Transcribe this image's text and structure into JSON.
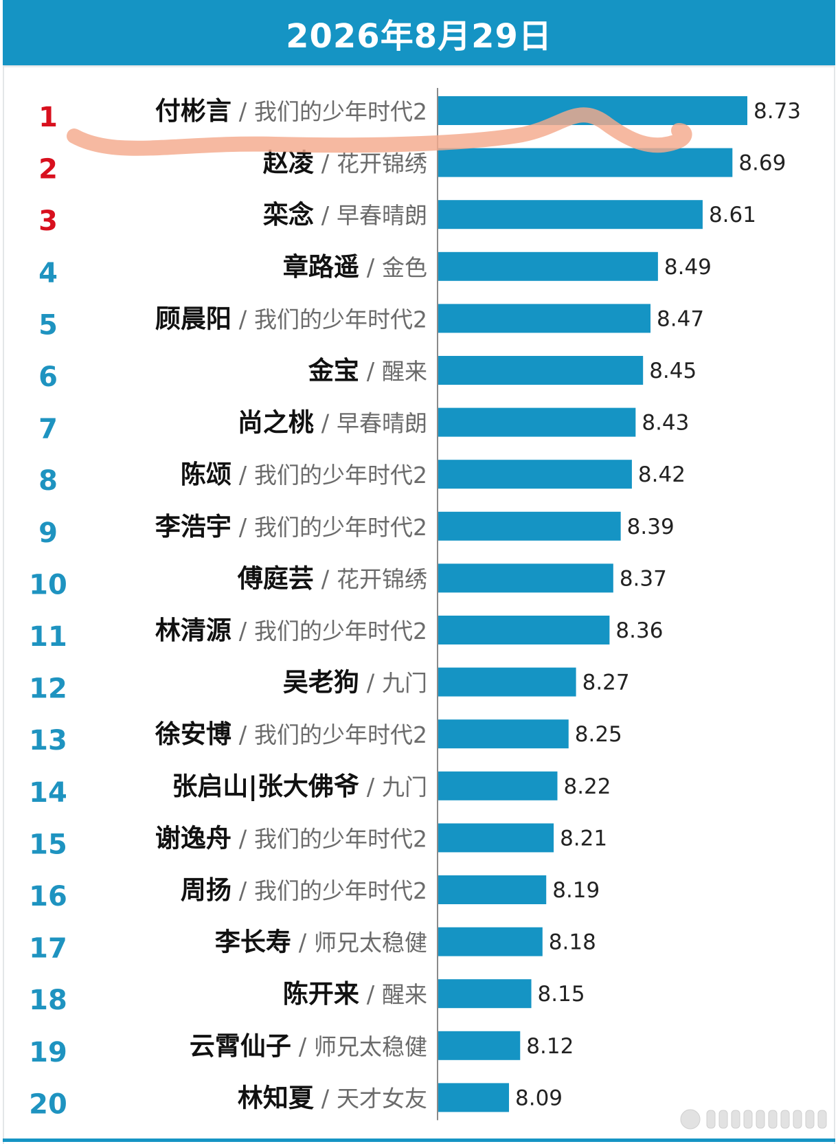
{
  "header": {
    "title": "2026年8月29日"
  },
  "colors": {
    "header_bg": "#1594c4",
    "bar": "#1594c4",
    "rank_top": "#d8101e",
    "rank_rest": "#1e93c0",
    "highlight_stroke": "#f4a98c"
  },
  "chart_data": {
    "type": "bar",
    "orientation": "horizontal",
    "title": "2026年8月29日",
    "sort": "descending",
    "grid": false,
    "xlim": [
      7.9,
      8.73
    ],
    "entries": [
      {
        "rank": "1",
        "name": "付彬言",
        "show": "我们的少年时代2",
        "value": 8.73
      },
      {
        "rank": "2",
        "name": "赵凌",
        "show": "花开锦绣",
        "value": 8.69
      },
      {
        "rank": "3",
        "name": "栾念",
        "show": "早春晴朗",
        "value": 8.61
      },
      {
        "rank": "4",
        "name": "章路遥",
        "show": "金色",
        "value": 8.49
      },
      {
        "rank": "5",
        "name": "顾晨阳",
        "show": "我们的少年时代2",
        "value": 8.47
      },
      {
        "rank": "6",
        "name": "金宝",
        "show": "醒来",
        "value": 8.45
      },
      {
        "rank": "7",
        "name": "尚之桃",
        "show": "早春晴朗",
        "value": 8.43
      },
      {
        "rank": "8",
        "name": "陈颂",
        "show": "我们的少年时代2",
        "value": 8.42
      },
      {
        "rank": "9",
        "name": "李浩宇",
        "show": "我们的少年时代2",
        "value": 8.39
      },
      {
        "rank": "10",
        "name": "傅庭芸",
        "show": "花开锦绣",
        "value": 8.37
      },
      {
        "rank": "11",
        "name": "林清源",
        "show": "我们的少年时代2",
        "value": 8.36
      },
      {
        "rank": "12",
        "name": "吴老狗",
        "show": "九门",
        "value": 8.27
      },
      {
        "rank": "13",
        "name": "徐安博",
        "show": "我们的少年时代2",
        "value": 8.25
      },
      {
        "rank": "14",
        "name": "张启山|张大佛爷",
        "show": "九门",
        "value": 8.22
      },
      {
        "rank": "15",
        "name": "谢逸舟",
        "show": "我们的少年时代2",
        "value": 8.21
      },
      {
        "rank": "16",
        "name": "周扬",
        "show": "我们的少年时代2",
        "value": 8.19
      },
      {
        "rank": "17",
        "name": "李长寿",
        "show": "师兄太稳健",
        "value": 8.18
      },
      {
        "rank": "18",
        "name": "陈开来",
        "show": "醒来",
        "value": 8.15
      },
      {
        "rank": "19",
        "name": "云霄仙子",
        "show": "师兄太稳健",
        "value": 8.12
      },
      {
        "rank": "20",
        "name": "林知夏",
        "show": "天才女友",
        "value": 8.09
      }
    ]
  }
}
